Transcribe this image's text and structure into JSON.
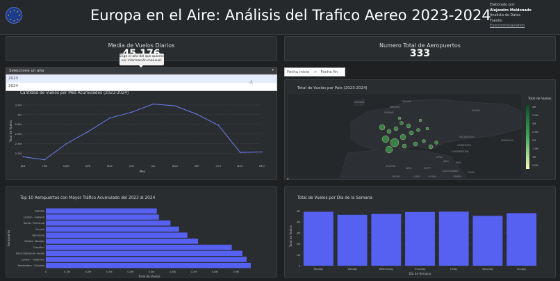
{
  "header": {
    "title": "Europa en el Aire: Análisis del Trafico Aereo 2023-2024",
    "author_label": "Elaborado por:",
    "author_name": "Alejandro Maldonado",
    "author_role": "Analista de Datos",
    "source_label": "Fuente:",
    "source_link": "Eurocontrol/aviation"
  },
  "kpis": {
    "avg_label": "Media de Vuelos Diarios",
    "avg_value": "45,176",
    "airports_label": "Numero Total de Aeropuertos",
    "airports_value": "333"
  },
  "tooltip": {
    "line1": "Elige el año del que quieres",
    "line2": "ver información mensual."
  },
  "year_select": {
    "placeholder": "Seleccione un año",
    "options": [
      "2023",
      "2024"
    ]
  },
  "date_range": {
    "start_placeholder": "Fecha inicio",
    "arrow": "→",
    "end_placeholder": "Fecha fin"
  },
  "line_panel": {
    "title": "Cantidad de Vuelos por Mes Acumulados (2023-2024)"
  },
  "map_panel": {
    "title": "Total de Vuelos por País (2023-2024)",
    "colorbar_title": "Total de Vuelos",
    "colorbar_ticks": [
      "4M",
      "3.5M",
      "3M",
      "2.5M",
      "2M",
      "1.5M",
      "1M",
      "0.5M"
    ],
    "countries": [
      "ICELAND",
      "FINLAND",
      "SWEDEN",
      "NORWAY",
      "RUSSIA",
      "KAZAKHSTAN",
      "UZBEKISTAN",
      "TURKMENISTAN",
      "MONGOLIA",
      "SYRIA",
      "IRAQ",
      "IRAN",
      "ALGERIA",
      "LIBYA",
      "EGYPT",
      "SAUDI ARABIA",
      "NIGER",
      "CHAD",
      "SUDAN",
      "OMAN",
      "YEMEN"
    ]
  },
  "colors": {
    "line": "#6d7ef5",
    "bar": "#5661f2",
    "background": "#1e2022",
    "panel": "#2a2d30",
    "colorbar_top": "#0c4d24",
    "colorbar_bottom": "#f7fcb9"
  },
  "chart_data": [
    {
      "type": "line",
      "title": "Cantidad de Vuelos por Mes Acumulados (2023-2024)",
      "xlabel": "Mes",
      "ylabel": "Total de Vuelos",
      "categories": [
        "JAN",
        "FEB",
        "MAR",
        "APR",
        "MAY",
        "JUN",
        "JUL",
        "AUG",
        "SEP",
        "OCT",
        "NOV",
        "DEC"
      ],
      "values": [
        2.13,
        2.07,
        2.4,
        2.65,
        2.93,
        3.05,
        3.22,
        3.18,
        3.01,
        2.78,
        2.22,
        2.23
      ],
      "value_unit": "M",
      "yticks": [
        "2.2M",
        "2.4M",
        "2.6M",
        "2.8M",
        "3M",
        "3.2M"
      ],
      "ylim": [
        2.05,
        3.27
      ],
      "grid": true
    },
    {
      "type": "bar",
      "orientation": "horizontal",
      "title": "Top 10 Aeropuertos con Mayor Tráfico Acumulado del 2023 al 2024",
      "xlabel": "Total de Vuelos",
      "ylabel": "Aeropuerto",
      "categories": [
        "Istanbul",
        "London - Gatwick",
        "Rome - Fiumicino",
        "Munich",
        "Barcelona",
        "Madrid - Barajas",
        "Frankfurt",
        "Paris-Charles-de-Gaulle",
        "London - Heathrow",
        "Amsterdam - Schiphol"
      ],
      "values": [
        0.525,
        0.535,
        0.59,
        0.63,
        0.67,
        0.72,
        0.88,
        0.93,
        0.95,
        0.97
      ],
      "value_unit": "M",
      "xticks": [
        "0",
        "0.1M",
        "0.2M",
        "0.3M",
        "0.4M",
        "0.5M",
        "0.6M",
        "0.7M",
        "0.8M",
        "0.9M"
      ],
      "xlim": [
        0,
        0.98
      ]
    },
    {
      "type": "bar",
      "title": "Total de Vuelos por Día de la Semana",
      "xlabel": "Día de Semana",
      "ylabel": "Total de Vuelos",
      "categories": [
        "Monday",
        "Tuesday",
        "Wednesday",
        "Thursday",
        "Friday",
        "Saturday",
        "Sunday"
      ],
      "values": [
        4.92,
        4.65,
        4.73,
        4.9,
        4.93,
        4.55,
        4.8
      ],
      "value_unit": "M",
      "yticks": [
        "0",
        "1M",
        "2M",
        "3M",
        "4M",
        "5M"
      ],
      "ylim": [
        0,
        5.4
      ],
      "grid": true
    }
  ]
}
